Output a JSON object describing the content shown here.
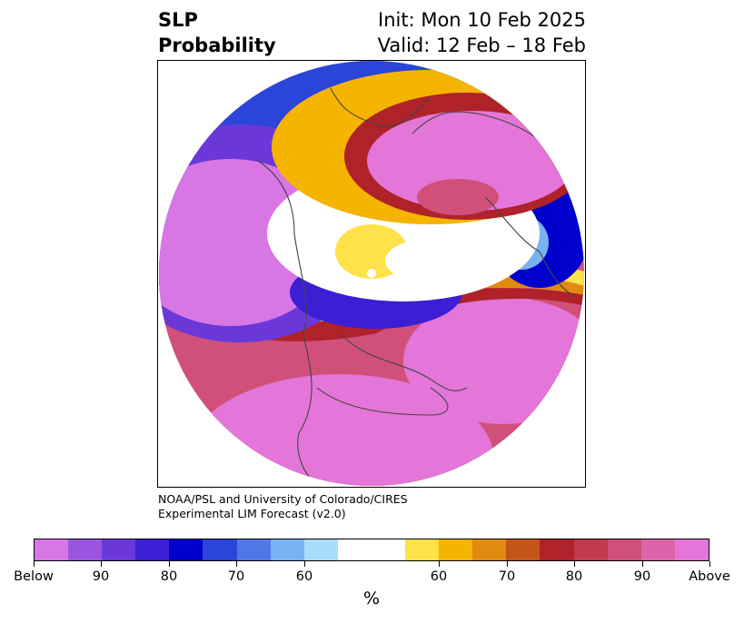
{
  "title": {
    "left_line1": "SLP",
    "left_line2": "Probability",
    "right_line1": "Init: Mon 10 Feb 2025",
    "right_line2": "Valid: 12 Feb – 18 Feb"
  },
  "credit": {
    "line1": "NOAA/PSL and University of Colorado/CIRES",
    "line2": "Experimental LIM Forecast (v2.0)"
  },
  "colorbar": {
    "colors": [
      "#d876e6",
      "#9a55e0",
      "#6a38d8",
      "#3c1ed4",
      "#0000cc",
      "#2a45d8",
      "#4f78e6",
      "#78b2f2",
      "#aadcfc",
      "#ffffff",
      "#ffffff",
      "#ffe14a",
      "#f4b400",
      "#e08a10",
      "#c45418",
      "#b0222a",
      "#c23a50",
      "#d0507a",
      "#dc64ac",
      "#e376d8"
    ],
    "tick_labels": [
      "Below",
      "90",
      "80",
      "70",
      "60",
      "60",
      "70",
      "80",
      "90",
      "Above"
    ],
    "unit": "%"
  },
  "map": {
    "palette": {
      "above_strong": "#e376d8",
      "above_mid": "#d0507a",
      "above_red": "#b0222a",
      "above_orange": "#e08a10",
      "above_gold": "#f4b400",
      "above_yellow": "#ffe14a",
      "below_light": "#aadcfc",
      "below_sky": "#78b2f2",
      "below_blue": "#2a45d8",
      "below_navy": "#0000cc",
      "below_indigo": "#3c1ed4",
      "below_violet": "#6a38d8",
      "below_strong": "#d876e6",
      "coastline": "#444444"
    }
  }
}
